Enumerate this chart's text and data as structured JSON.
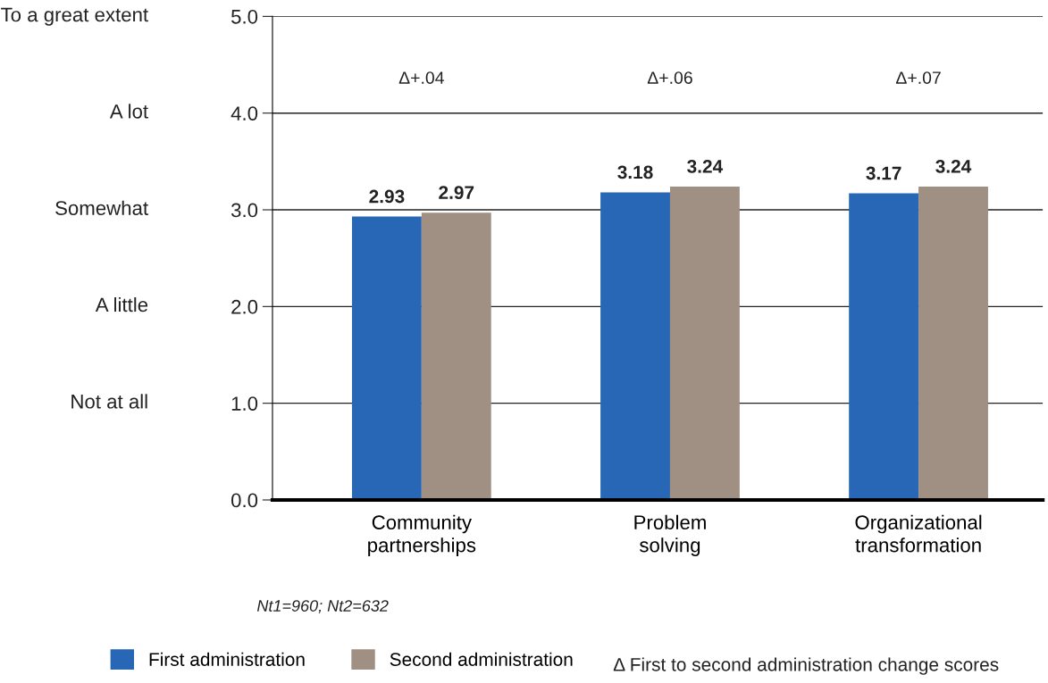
{
  "chart_data": {
    "type": "bar",
    "categories": [
      "Community\npartnerships",
      "Problem\nsolving",
      "Organizational\ntransformation"
    ],
    "series": [
      {
        "name": "First administration",
        "color": "#2767b5",
        "values": [
          2.93,
          3.18,
          3.17
        ]
      },
      {
        "name": "Second administration",
        "color": "#a08f83",
        "values": [
          2.97,
          3.24,
          3.24
        ]
      }
    ],
    "ylim": [
      0,
      5
    ],
    "yticks": [
      {
        "value": 0,
        "label": "0.0"
      },
      {
        "value": 1,
        "label": "1.0"
      },
      {
        "value": 2,
        "label": "2.0"
      },
      {
        "value": 3,
        "label": "3.0"
      },
      {
        "value": 4,
        "label": "4.0"
      },
      {
        "value": 5,
        "label": "5.0"
      }
    ],
    "grid": "y",
    "legend": "bottom",
    "data_labels": true,
    "annotations": [
      "To a great extent",
      "A lot",
      "Somewhat",
      "A little",
      "Not at all",
      "Δ+.04",
      "Δ+.06",
      "Δ+.07",
      "Nt1=960; Nt2=632",
      "Δ First to second administration change scores"
    ]
  }
}
